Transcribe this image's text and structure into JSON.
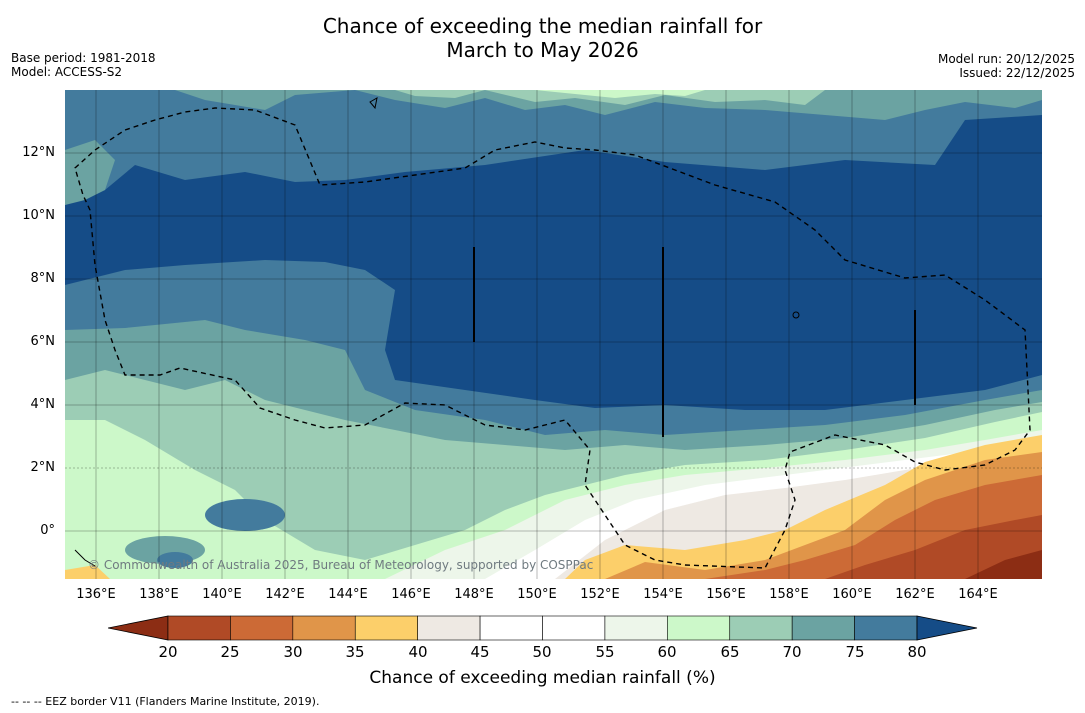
{
  "title_line1": "Chance of exceeding the median rainfall for",
  "title_line2": "March to May 2026",
  "base_period": "Base period: 1981-2018",
  "model": "Model: ACCESS-S2",
  "model_run": "Model run: 20/12/2025",
  "issued": "Issued: 22/12/2025",
  "copyright": "© Commonwealth of Australia 2025, Bureau of Meteorology, supported by COSPPac",
  "footer": "--  --  -- EEZ border V11 (Flanders Marine Institute, 2019).",
  "lat_labels": [
    "12°N",
    "10°N",
    "8°N",
    "6°N",
    "4°N",
    "2°N",
    "0°"
  ],
  "lon_labels": [
    "136°E",
    "138°E",
    "140°E",
    "142°E",
    "144°E",
    "146°E",
    "148°E",
    "150°E",
    "152°E",
    "154°E",
    "156°E",
    "158°E",
    "160°E",
    "162°E",
    "164°E"
  ],
  "colorbar": {
    "title": "Chance of exceeding median rainfall (%)",
    "ticks": [
      "20",
      "25",
      "30",
      "35",
      "40",
      "45",
      "50",
      "55",
      "60",
      "65",
      "70",
      "75",
      "80"
    ],
    "colors": [
      "#8c2d14",
      "#b04a26",
      "#cc6a36",
      "#e09549",
      "#fccf6a",
      "#eee9e3",
      "#ffffff",
      "#ffffff",
      "#edf6ea",
      "#ccf8c9",
      "#9ccdb5",
      "#6ba3a2",
      "#437b9d",
      "#154c87"
    ]
  },
  "colors": {
    "band_80": "#154c87",
    "band_75": "#437b9d",
    "band_70": "#6ba3a2",
    "band_65": "#9ccdb5",
    "band_60": "#ccf8c9",
    "band_55": "#edf6ea",
    "band_45": "#eee9e3",
    "band_35": "#fccf6a",
    "band_30": "#e09549",
    "band_25": "#cc6a36",
    "band_20": "#b04a26"
  }
}
